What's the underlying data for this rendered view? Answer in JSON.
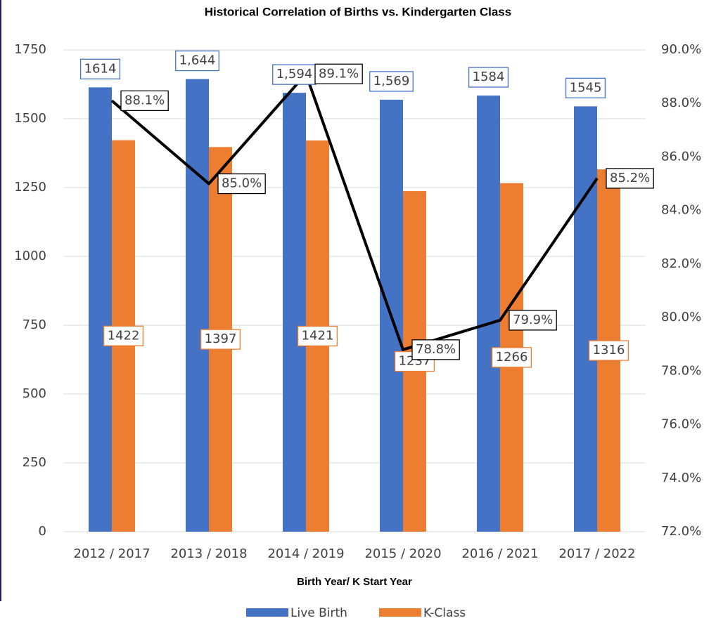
{
  "chart_data": {
    "type": "bar",
    "title": "Historical Correlation of Births vs. Kindergarten Class",
    "x_label": "Birth Year/ K Start Year",
    "categories": [
      "2012 / 2017",
      "2013 / 2018",
      "2014 / 2019",
      "2015 / 2020",
      "2016 / 2021",
      "2017 / 2022"
    ],
    "series": [
      {
        "name": "Live Birth",
        "color": "#4472c4",
        "values": [
          1614,
          1644,
          1594,
          1569,
          1584,
          1545
        ],
        "value_labels": [
          "1614",
          "1,644",
          "1,594",
          "1,569",
          "1584",
          "1545"
        ]
      },
      {
        "name": "K-Class",
        "color": "#ed7d31",
        "values": [
          1422,
          1397,
          1421,
          1237,
          1266,
          1316
        ]
      },
      {
        "type": "line",
        "axis": "y2",
        "color": "#000000",
        "values": [
          88.1,
          85.0,
          89.1,
          78.8,
          79.9,
          85.2
        ],
        "value_labels": [
          "88.1%",
          "85.0%",
          "89.1%",
          "78.8%",
          "79.9%",
          "85.2%"
        ]
      }
    ],
    "ylim": [
      0,
      1750
    ],
    "yticks": [
      0,
      250,
      500,
      750,
      1000,
      1250,
      1500,
      1750
    ],
    "y2lim": [
      72,
      90
    ],
    "y2ticks": [
      {
        "value": 72,
        "label": "72.0%"
      },
      {
        "value": 74,
        "label": "74.0%"
      },
      {
        "value": 76,
        "label": "76.0%"
      },
      {
        "value": 78,
        "label": "78.0%"
      },
      {
        "value": 80,
        "label": "80.0%"
      },
      {
        "value": 82,
        "label": "82.0%"
      },
      {
        "value": 84,
        "label": "84.0%"
      },
      {
        "value": 86,
        "label": "86.0%"
      },
      {
        "value": 88,
        "label": "88.0%"
      },
      {
        "value": 90,
        "label": "90.0%"
      }
    ],
    "grid": true,
    "legend": "bottom"
  }
}
